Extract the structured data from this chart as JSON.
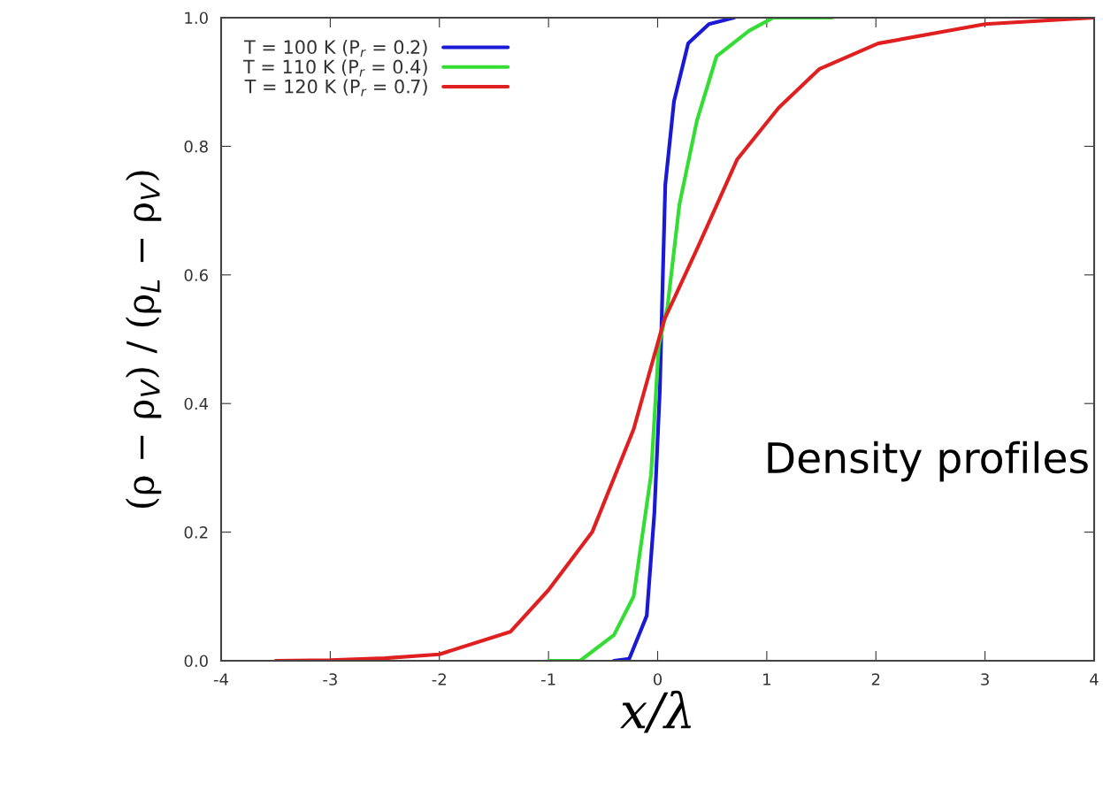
{
  "chart_data": {
    "type": "line",
    "xlabel": "x/λ",
    "ylabel": "(ρ − ρ$_{V}$) / (ρ$_{L}$ − ρ$_{V}$)",
    "xlim": [
      -4,
      4
    ],
    "ylim": [
      0,
      1
    ],
    "xticks": [
      -4,
      -3,
      -2,
      -1,
      0,
      1,
      2,
      3,
      4
    ],
    "yticks": [
      {
        "value": 0,
        "label": "0.0"
      },
      0.2,
      0.4,
      0.6,
      0.8,
      {
        "value": 1,
        "label": "1.0"
      }
    ],
    "legend": "top left",
    "grid": false,
    "line_style": "solid",
    "marker": "none",
    "annotations": [
      "Density profiles"
    ],
    "series": [
      {
        "name": "T = 100 K (P$_{r}$ = 0.2)",
        "color": "#1a1ad6",
        "x": [
          -0.4,
          -0.26,
          -0.1,
          -0.03,
          0.02,
          0.04,
          0.07,
          0.15,
          0.28,
          0.47,
          0.7
        ],
        "values": [
          0,
          0.003,
          0.07,
          0.23,
          0.42,
          0.55,
          0.74,
          0.87,
          0.96,
          0.99,
          1.0
        ]
      },
      {
        "name": "T = 110 K (P$_{r}$ = 0.4)",
        "color": "#33dd33",
        "x": [
          -1.0,
          -0.71,
          -0.4,
          -0.22,
          -0.06,
          0.01,
          0.09,
          0.2,
          0.36,
          0.54,
          0.84,
          1.06,
          1.6
        ],
        "values": [
          0,
          0.0,
          0.04,
          0.1,
          0.29,
          0.49,
          0.55,
          0.71,
          0.84,
          0.94,
          0.98,
          1.0,
          1.0
        ]
      },
      {
        "name": "T = 120 K (P$_{r}$ = 0.7)",
        "color": "#e02020",
        "x": [
          -3.5,
          -3.0,
          -2.5,
          -2.0,
          -1.35,
          -1.0,
          -0.6,
          -0.22,
          0.06,
          0.36,
          0.73,
          1.11,
          1.48,
          2.02,
          3.0,
          4.0
        ],
        "values": [
          0,
          0.001,
          0.004,
          0.01,
          0.045,
          0.11,
          0.2,
          0.36,
          0.53,
          0.64,
          0.78,
          0.86,
          0.92,
          0.96,
          0.99,
          1.0
        ]
      }
    ]
  }
}
